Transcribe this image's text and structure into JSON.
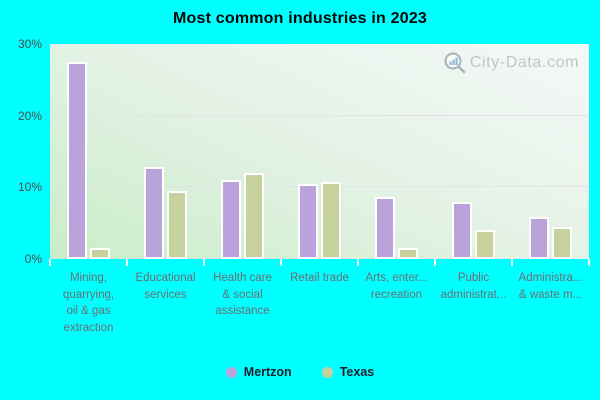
{
  "title": "Most common industries in 2023",
  "watermark": {
    "text": "City-Data.com",
    "icon": "magnifier-bar-chart-logo"
  },
  "colors": {
    "page_background": "#00ffff",
    "plot_gradient_top": "#f5f8f8",
    "plot_gradient_bottom": "#c9edc7",
    "gridline": "#e4dfe9",
    "y_axis_label": "#4c4c52",
    "category_label": "#6d6d75",
    "legend_text": "#1e1e2d",
    "title_text": "#050505",
    "bar_border": "#ffffff",
    "mertzon_purple": "#b9a3da",
    "texas_khaki": "#c6d19e",
    "watermark_text": "#b2bac0"
  },
  "chart_data": {
    "type": "bar",
    "title": "Most common industries in 2023",
    "xlabel": "",
    "ylabel": "",
    "ylim": [
      0,
      30
    ],
    "grid": true,
    "gridline_values": [
      10,
      20
    ],
    "legend_position": "bottom",
    "yticks": [
      {
        "label": "0%",
        "value": 0
      },
      {
        "label": "10%",
        "value": 10
      },
      {
        "label": "20%",
        "value": 20
      },
      {
        "label": "30%",
        "value": 30
      }
    ],
    "categories": [
      {
        "display_lines": [
          "Mining,",
          "quarrying,",
          "oil & gas",
          "extraction"
        ]
      },
      {
        "display_lines": [
          "Educational",
          "services"
        ]
      },
      {
        "display_lines": [
          "Health care",
          "& social",
          "assistance"
        ]
      },
      {
        "display_lines": [
          "Retail trade"
        ]
      },
      {
        "display_lines": [
          "Arts, enter...",
          "recreation"
        ]
      },
      {
        "display_lines": [
          "Public",
          "administrat..."
        ]
      },
      {
        "display_lines": [
          "Administra...",
          "& waste m..."
        ]
      }
    ],
    "series": [
      {
        "name": "Mertzon",
        "color": "#b9a3da",
        "values": [
          27.5,
          12.8,
          11.0,
          10.5,
          8.6,
          8.0,
          5.8
        ]
      },
      {
        "name": "Texas",
        "color": "#c6d19e",
        "values": [
          1.5,
          9.5,
          12.0,
          10.8,
          1.5,
          4.0,
          4.5
        ]
      }
    ]
  },
  "legend": {
    "items": [
      {
        "label": "Mertzon",
        "color": "#b9a3da"
      },
      {
        "label": "Texas",
        "color": "#c6d19e"
      }
    ]
  }
}
